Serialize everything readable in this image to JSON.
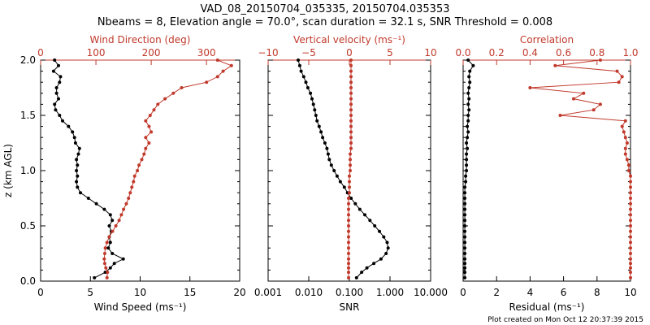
{
  "figure": {
    "title_line1": "VAD_08_20150704_035335, 20150704.035353",
    "title_line2": "Nbeams = 8, Elevation angle = 70.0°, scan duration = 32.1 s, SNR Threshold = 0.008",
    "footer": "Plot created on Mon Oct 12 20:37:39 2015",
    "colors": {
      "black": "#000000",
      "red": "#c0392b"
    }
  },
  "chart_data": [
    {
      "type": "line",
      "ylabel": "z (km AGL)",
      "ylim": [
        0,
        2.0
      ],
      "y_ticks": [
        "0.0",
        "0.5",
        "1.0",
        "1.5",
        "2.0"
      ],
      "bottom_axis": {
        "label": "Wind Speed (ms⁻¹)",
        "xlim": [
          0,
          20
        ],
        "ticks": [
          "0",
          "5",
          "10",
          "15",
          "20"
        ]
      },
      "top_axis": {
        "label": "Wind Direction (deg)",
        "xlim": [
          0,
          360
        ],
        "ticks": [
          "0",
          "100",
          "200",
          "300"
        ]
      },
      "series": [
        {
          "name": "Wind Speed",
          "axis": "bottom",
          "color": "#000000",
          "z": [
            0.03,
            0.08,
            0.12,
            0.16,
            0.2,
            0.25,
            0.3,
            0.35,
            0.4,
            0.45,
            0.5,
            0.55,
            0.6,
            0.65,
            0.7,
            0.75,
            0.8,
            0.85,
            0.9,
            0.95,
            1.0,
            1.05,
            1.1,
            1.15,
            1.2,
            1.25,
            1.3,
            1.35,
            1.4,
            1.45,
            1.5,
            1.55,
            1.6,
            1.65,
            1.7,
            1.75,
            1.8,
            1.85,
            1.9,
            1.95,
            2.0
          ],
          "values": [
            5.4,
            6.5,
            7.0,
            7.4,
            8.3,
            7.2,
            6.8,
            7.0,
            6.9,
            7.1,
            6.9,
            7.2,
            7.0,
            6.4,
            5.6,
            4.8,
            4.0,
            3.7,
            3.6,
            3.7,
            3.6,
            3.7,
            3.6,
            3.8,
            3.9,
            3.5,
            3.4,
            3.2,
            2.8,
            2.2,
            1.9,
            1.5,
            1.4,
            1.8,
            1.6,
            1.6,
            1.9,
            2.0,
            1.3,
            1.8,
            1.4
          ]
        },
        {
          "name": "Wind Direction",
          "axis": "top",
          "color": "#c0392b",
          "z": [
            0.03,
            0.08,
            0.12,
            0.16,
            0.2,
            0.25,
            0.3,
            0.35,
            0.4,
            0.45,
            0.5,
            0.55,
            0.6,
            0.65,
            0.7,
            0.75,
            0.8,
            0.85,
            0.9,
            0.95,
            1.0,
            1.05,
            1.1,
            1.15,
            1.2,
            1.25,
            1.3,
            1.35,
            1.4,
            1.45,
            1.5,
            1.55,
            1.6,
            1.65,
            1.7,
            1.75,
            1.8,
            1.85,
            1.9,
            1.95,
            2.0
          ],
          "values": [
            120,
            121,
            118,
            116,
            115,
            116,
            117,
            120,
            124,
            130,
            136,
            142,
            146,
            150,
            155,
            159,
            162,
            165,
            168,
            170,
            175,
            178,
            183,
            187,
            190,
            196,
            190,
            200,
            196,
            190,
            198,
            205,
            212,
            225,
            240,
            255,
            300,
            320,
            330,
            345,
            320
          ]
        }
      ]
    },
    {
      "type": "line",
      "ylim": [
        0,
        2.0
      ],
      "bottom_axis": {
        "label": "SNR",
        "xlim": [
          0.001,
          10
        ],
        "scale": "log",
        "ticks": [
          "0.001",
          "0.010",
          "0.100",
          "1.000",
          "10.000"
        ]
      },
      "top_axis": {
        "label": "Vertical velocity (ms⁻¹)",
        "xlim": [
          -10,
          10
        ],
        "ticks": [
          "−10",
          "−5",
          "0",
          "5",
          "10"
        ]
      },
      "series": [
        {
          "name": "SNR",
          "axis": "bottom",
          "color": "#000000",
          "z": [
            0.03,
            0.08,
            0.12,
            0.16,
            0.2,
            0.25,
            0.3,
            0.35,
            0.4,
            0.45,
            0.5,
            0.55,
            0.6,
            0.65,
            0.7,
            0.75,
            0.8,
            0.85,
            0.9,
            0.95,
            1.0,
            1.05,
            1.1,
            1.15,
            1.2,
            1.25,
            1.3,
            1.35,
            1.4,
            1.45,
            1.5,
            1.55,
            1.6,
            1.65,
            1.7,
            1.75,
            1.8,
            1.85,
            1.9,
            1.95,
            2.0
          ],
          "values": [
            0.15,
            0.2,
            0.27,
            0.4,
            0.6,
            0.8,
            0.9,
            0.85,
            0.7,
            0.55,
            0.42,
            0.32,
            0.24,
            0.18,
            0.14,
            0.11,
            0.09,
            0.075,
            0.06,
            0.05,
            0.042,
            0.036,
            0.032,
            0.03,
            0.028,
            0.025,
            0.022,
            0.02,
            0.018,
            0.016,
            0.015,
            0.014,
            0.013,
            0.012,
            0.011,
            0.0095,
            0.0085,
            0.0075,
            0.0065,
            0.006,
            0.0055
          ]
        },
        {
          "name": "Vertical velocity",
          "axis": "top",
          "color": "#c0392b",
          "z": [
            0.03,
            0.08,
            0.12,
            0.16,
            0.2,
            0.25,
            0.3,
            0.35,
            0.4,
            0.45,
            0.5,
            0.55,
            0.6,
            0.65,
            0.7,
            0.75,
            0.8,
            0.85,
            0.9,
            0.95,
            1.0,
            1.05,
            1.1,
            1.15,
            1.2,
            1.25,
            1.3,
            1.35,
            1.4,
            1.45,
            1.5,
            1.55,
            1.6,
            1.65,
            1.7,
            1.75,
            1.8,
            1.85,
            1.9,
            1.95,
            2.0
          ],
          "values": [
            -0.1,
            -0.1,
            -0.1,
            -0.1,
            -0.1,
            -0.1,
            -0.1,
            -0.1,
            -0.1,
            -0.1,
            -0.1,
            -0.1,
            -0.1,
            -0.1,
            -0.1,
            -0.1,
            0.0,
            0.0,
            0.0,
            0.0,
            0.1,
            0.1,
            0.1,
            0.1,
            0.2,
            0.2,
            0.2,
            0.2,
            0.2,
            0.2,
            0.2,
            0.2,
            0.2,
            0.2,
            0.2,
            0.2,
            0.2,
            0.2,
            0.2,
            0.2,
            0.2
          ]
        }
      ]
    },
    {
      "type": "line",
      "ylim": [
        0,
        2.0
      ],
      "bottom_axis": {
        "label": "Residual (ms⁻¹)",
        "xlim": [
          0,
          10
        ],
        "ticks": [
          "0",
          "2",
          "4",
          "6",
          "8",
          "10"
        ]
      },
      "top_axis": {
        "label": "Correlation",
        "xlim": [
          0.0,
          1.0
        ],
        "ticks": [
          "0.0",
          "0.2",
          "0.4",
          "0.6",
          "0.8",
          "1.0"
        ]
      },
      "series": [
        {
          "name": "Residual",
          "axis": "bottom",
          "color": "#000000",
          "z": [
            0.03,
            0.08,
            0.12,
            0.16,
            0.2,
            0.25,
            0.3,
            0.35,
            0.4,
            0.45,
            0.5,
            0.55,
            0.6,
            0.65,
            0.7,
            0.75,
            0.8,
            0.85,
            0.9,
            0.95,
            1.0,
            1.05,
            1.1,
            1.15,
            1.2,
            1.25,
            1.3,
            1.35,
            1.4,
            1.45,
            1.5,
            1.55,
            1.6,
            1.65,
            1.7,
            1.75,
            1.8,
            1.85,
            1.9,
            1.95,
            2.0
          ],
          "values": [
            0.1,
            0.1,
            0.1,
            0.1,
            0.1,
            0.1,
            0.1,
            0.1,
            0.1,
            0.1,
            0.1,
            0.1,
            0.1,
            0.1,
            0.1,
            0.1,
            0.1,
            0.1,
            0.15,
            0.15,
            0.2,
            0.2,
            0.2,
            0.2,
            0.25,
            0.2,
            0.25,
            0.3,
            0.25,
            0.3,
            0.3,
            0.35,
            0.3,
            0.35,
            0.3,
            0.35,
            0.4,
            0.35,
            0.4,
            0.6,
            0.3
          ]
        },
        {
          "name": "Correlation",
          "axis": "top",
          "color": "#c0392b",
          "z": [
            0.03,
            0.08,
            0.12,
            0.16,
            0.2,
            0.25,
            0.3,
            0.35,
            0.4,
            0.45,
            0.5,
            0.55,
            0.6,
            0.65,
            0.7,
            0.75,
            0.8,
            0.85,
            0.9,
            0.95,
            1.0,
            1.05,
            1.1,
            1.15,
            1.2,
            1.25,
            1.3,
            1.35,
            1.4,
            1.45,
            1.5,
            1.55,
            1.6,
            1.65,
            1.7,
            1.75,
            1.8,
            1.85,
            1.9,
            1.95,
            2.0
          ],
          "values": [
            1.0,
            1.0,
            1.0,
            1.0,
            1.0,
            1.0,
            1.0,
            1.0,
            1.0,
            1.0,
            1.0,
            1.0,
            1.0,
            1.0,
            1.0,
            1.0,
            1.0,
            1.0,
            1.0,
            1.0,
            0.99,
            0.99,
            0.98,
            0.97,
            0.97,
            0.98,
            0.97,
            0.96,
            0.95,
            0.97,
            0.58,
            0.78,
            0.82,
            0.66,
            0.72,
            0.4,
            0.93,
            0.95,
            0.92,
            0.55,
            0.82
          ]
        }
      ]
    }
  ]
}
